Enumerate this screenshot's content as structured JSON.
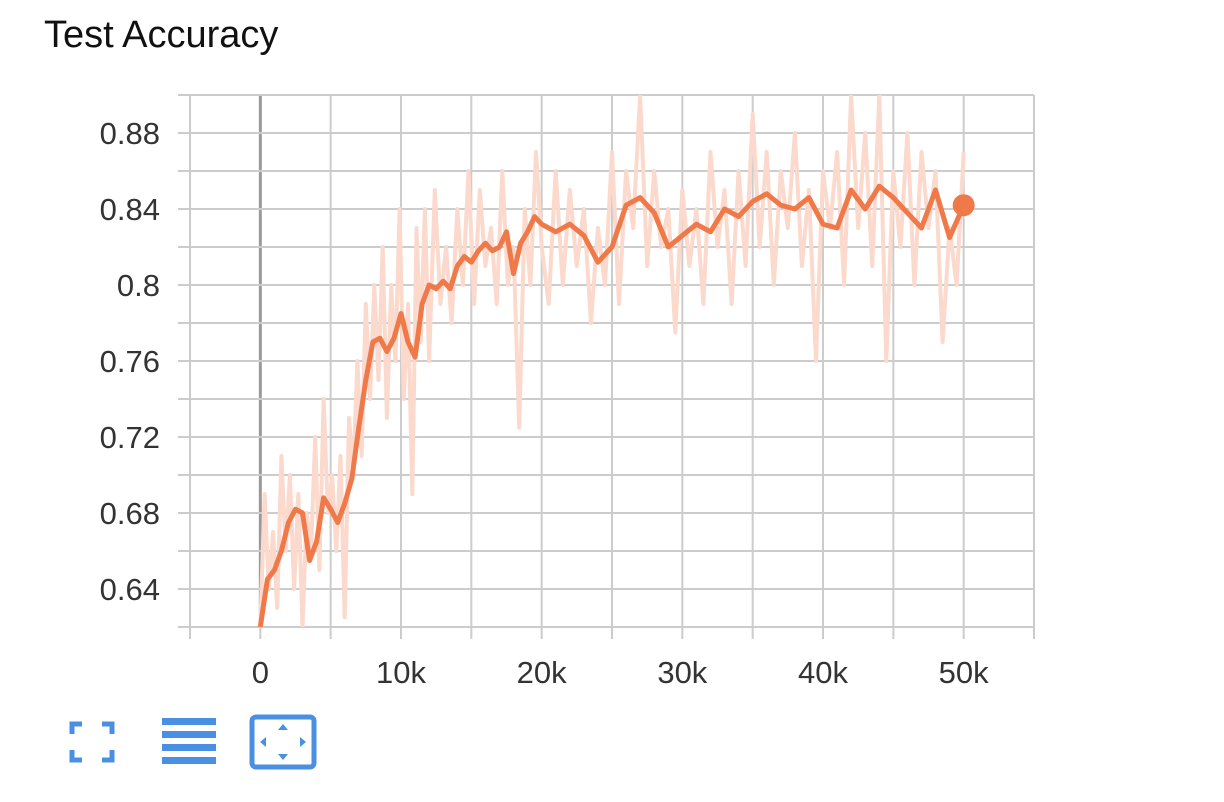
{
  "title": "Test Accuracy",
  "toolbar": {
    "buttons": [
      {
        "name": "expand-chart-button",
        "icon": "fullscreen-icon"
      },
      {
        "name": "toggle-log-scale-button",
        "icon": "lines-icon"
      },
      {
        "name": "fit-domain-button",
        "icon": "fit-domain-icon"
      }
    ],
    "accent": "#4a90e2"
  },
  "chart_data": {
    "type": "line",
    "title": "Test Accuracy",
    "xlabel": "",
    "ylabel": "",
    "xlim": [
      -5000,
      55000
    ],
    "ylim": [
      0.62,
      0.9
    ],
    "x_ticks": [
      0,
      10000,
      20000,
      30000,
      40000,
      50000
    ],
    "x_tick_labels": [
      "0",
      "10k",
      "20k",
      "30k",
      "40k",
      "50k"
    ],
    "y_ticks": [
      0.64,
      0.68,
      0.72,
      0.76,
      0.8,
      0.84,
      0.88
    ],
    "y_tick_labels": [
      "0.64",
      "0.68",
      "0.72",
      "0.76",
      "0.8",
      "0.84",
      "0.88"
    ],
    "grid": true,
    "colors": {
      "smoothed": "#f0794a",
      "raw": "#fbd9cc",
      "grid": "#cccccc",
      "zero_line": "#999999"
    },
    "series": [
      {
        "kind": "smoothed",
        "x": [
          0,
          500,
          1000,
          1500,
          2000,
          2500,
          3000,
          3500,
          4000,
          4500,
          5000,
          5500,
          6000,
          6500,
          7000,
          7500,
          8000,
          8500,
          9000,
          9500,
          10000,
          10500,
          11000,
          11500,
          12000,
          12500,
          13000,
          13500,
          14000,
          14500,
          15000,
          15500,
          16000,
          16500,
          17000,
          17500,
          18000,
          18500,
          19000,
          19500,
          20000,
          21000,
          22000,
          23000,
          24000,
          25000,
          26000,
          27000,
          28000,
          29000,
          30000,
          31000,
          32000,
          33000,
          34000,
          35000,
          36000,
          37000,
          38000,
          39000,
          40000,
          41000,
          42000,
          43000,
          44000,
          45000,
          46000,
          47000,
          48000,
          49000,
          50000
        ],
        "y": [
          0.62,
          0.645,
          0.65,
          0.66,
          0.675,
          0.682,
          0.68,
          0.655,
          0.665,
          0.688,
          0.682,
          0.675,
          0.685,
          0.698,
          0.725,
          0.75,
          0.77,
          0.772,
          0.765,
          0.772,
          0.785,
          0.77,
          0.762,
          0.79,
          0.8,
          0.798,
          0.802,
          0.798,
          0.81,
          0.815,
          0.812,
          0.818,
          0.822,
          0.818,
          0.82,
          0.828,
          0.806,
          0.822,
          0.828,
          0.836,
          0.832,
          0.828,
          0.832,
          0.826,
          0.812,
          0.82,
          0.842,
          0.846,
          0.838,
          0.82,
          0.826,
          0.832,
          0.828,
          0.84,
          0.836,
          0.844,
          0.848,
          0.842,
          0.84,
          0.846,
          0.832,
          0.83,
          0.85,
          0.84,
          0.852,
          0.846,
          0.838,
          0.83,
          0.85,
          0.825,
          0.842
        ]
      },
      {
        "kind": "raw",
        "x": [
          0,
          300,
          600,
          900,
          1200,
          1500,
          1800,
          2100,
          2400,
          2700,
          3000,
          3300,
          3600,
          3900,
          4200,
          4500,
          4800,
          5100,
          5400,
          5700,
          6000,
          6300,
          6600,
          6900,
          7200,
          7500,
          7800,
          8100,
          8400,
          8700,
          9000,
          9300,
          9600,
          9900,
          10200,
          10500,
          10800,
          11100,
          11400,
          11700,
          12000,
          12400,
          12800,
          13200,
          13600,
          14000,
          14400,
          14800,
          15200,
          15600,
          16000,
          16400,
          16800,
          17200,
          17600,
          18000,
          18400,
          18800,
          19200,
          19600,
          20000,
          20500,
          21000,
          21500,
          22000,
          22500,
          23000,
          23500,
          24000,
          24500,
          25000,
          25500,
          26000,
          26500,
          27000,
          27500,
          28000,
          28500,
          29000,
          29500,
          30000,
          30500,
          31000,
          31500,
          32000,
          32500,
          33000,
          33500,
          34000,
          34500,
          35000,
          35500,
          36000,
          36500,
          37000,
          37500,
          38000,
          38500,
          39000,
          39500,
          40000,
          40500,
          41000,
          41500,
          42000,
          42500,
          43000,
          43500,
          44000,
          44500,
          45000,
          45500,
          46000,
          46500,
          47000,
          47500,
          48000,
          48500,
          49000,
          49500,
          50000
        ],
        "y": [
          0.62,
          0.69,
          0.64,
          0.67,
          0.63,
          0.71,
          0.66,
          0.7,
          0.64,
          0.69,
          0.62,
          0.68,
          0.66,
          0.72,
          0.65,
          0.74,
          0.68,
          0.7,
          0.66,
          0.71,
          0.625,
          0.73,
          0.7,
          0.76,
          0.71,
          0.79,
          0.74,
          0.8,
          0.75,
          0.82,
          0.73,
          0.8,
          0.76,
          0.84,
          0.74,
          0.79,
          0.69,
          0.83,
          0.77,
          0.84,
          0.76,
          0.85,
          0.79,
          0.82,
          0.78,
          0.84,
          0.8,
          0.86,
          0.79,
          0.85,
          0.81,
          0.83,
          0.79,
          0.86,
          0.8,
          0.82,
          0.725,
          0.84,
          0.8,
          0.87,
          0.82,
          0.79,
          0.86,
          0.8,
          0.85,
          0.81,
          0.84,
          0.78,
          0.83,
          0.8,
          0.87,
          0.79,
          0.86,
          0.83,
          0.9,
          0.81,
          0.86,
          0.82,
          0.84,
          0.775,
          0.85,
          0.81,
          0.84,
          0.79,
          0.87,
          0.82,
          0.85,
          0.79,
          0.86,
          0.81,
          0.89,
          0.82,
          0.87,
          0.8,
          0.86,
          0.83,
          0.88,
          0.81,
          0.85,
          0.76,
          0.86,
          0.83,
          0.87,
          0.8,
          0.9,
          0.83,
          0.88,
          0.81,
          0.9,
          0.76,
          0.86,
          0.82,
          0.88,
          0.8,
          0.87,
          0.83,
          0.86,
          0.77,
          0.83,
          0.8,
          0.87
        ]
      }
    ],
    "last_point": {
      "x": 50000,
      "y": 0.842
    }
  }
}
